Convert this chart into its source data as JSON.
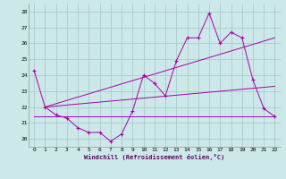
{
  "xlabel": "Windchill (Refroidissement éolien,°C)",
  "background_color": "#cce8e8",
  "grid_color": "#aacccc",
  "line_color": "#aa00aa",
  "xlim": [
    -0.5,
    22.5
  ],
  "ylim": [
    19.5,
    28.5
  ],
  "yticks": [
    20,
    21,
    22,
    23,
    24,
    25,
    26,
    27,
    28
  ],
  "xticks": [
    0,
    1,
    2,
    3,
    4,
    5,
    6,
    7,
    8,
    9,
    10,
    11,
    12,
    13,
    14,
    15,
    16,
    17,
    18,
    19,
    20,
    21,
    22
  ],
  "series1_x": [
    0,
    1,
    2,
    3,
    4,
    5,
    6,
    7,
    8,
    9,
    10,
    11,
    12,
    13,
    14,
    15,
    16,
    17,
    18,
    19,
    20,
    21,
    22
  ],
  "series1_y": [
    24.3,
    22.0,
    21.5,
    21.3,
    20.7,
    20.4,
    20.4,
    19.85,
    20.3,
    21.75,
    24.0,
    23.5,
    22.7,
    24.9,
    26.35,
    26.35,
    27.9,
    26.0,
    26.7,
    26.35,
    23.7,
    21.9,
    21.4
  ],
  "series2_x": [
    0,
    22
  ],
  "series2_y": [
    21.4,
    21.4
  ],
  "series3_x": [
    1,
    22
  ],
  "series3_y": [
    22.0,
    23.3
  ],
  "series4_x": [
    1,
    22
  ],
  "series4_y": [
    22.0,
    26.35
  ]
}
